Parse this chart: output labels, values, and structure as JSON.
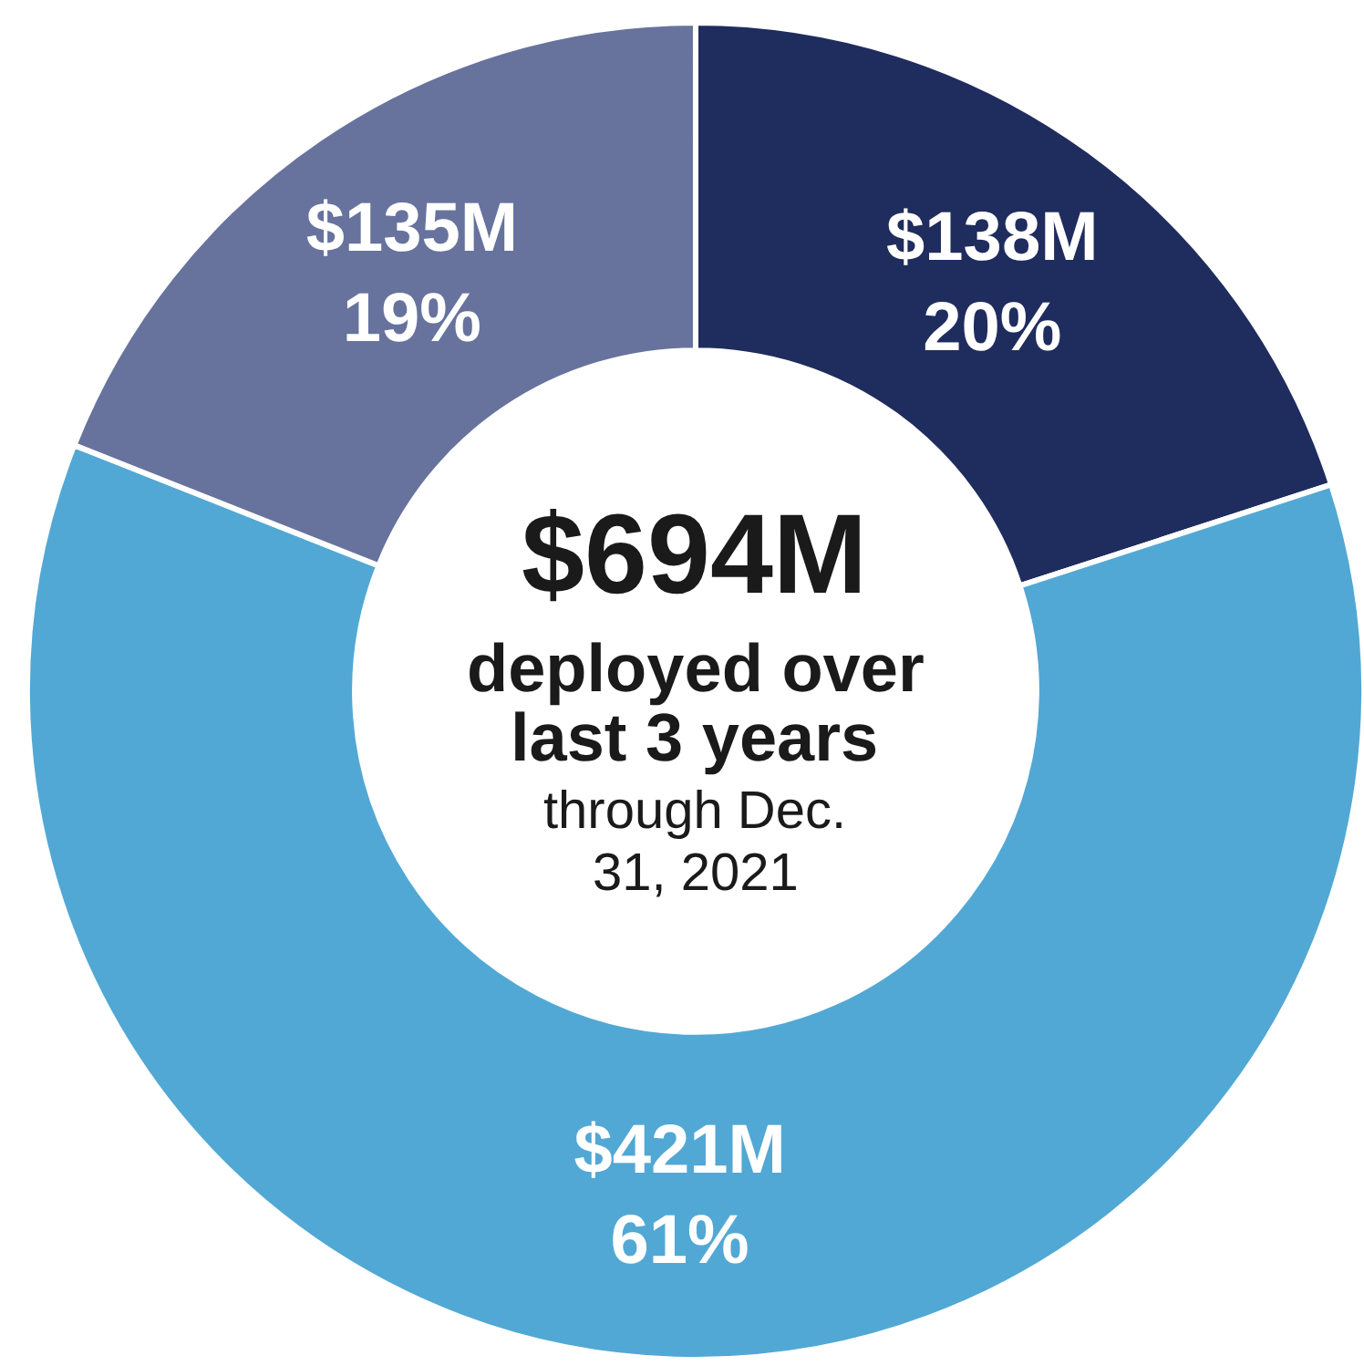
{
  "chart_data": {
    "type": "donut",
    "categories": [
      null,
      null,
      null
    ],
    "values": [
      20,
      61,
      19
    ],
    "colors": [
      "#1f2c5e",
      "#52a8d4",
      "#67739d"
    ],
    "value_labels": [
      "$138M\n20%",
      "$421M\n61%",
      "$135M\n19%"
    ],
    "annotations": [
      "$694M",
      "deployed over\nlast 3 years",
      "through Dec.\n31, 2021"
    ]
  }
}
